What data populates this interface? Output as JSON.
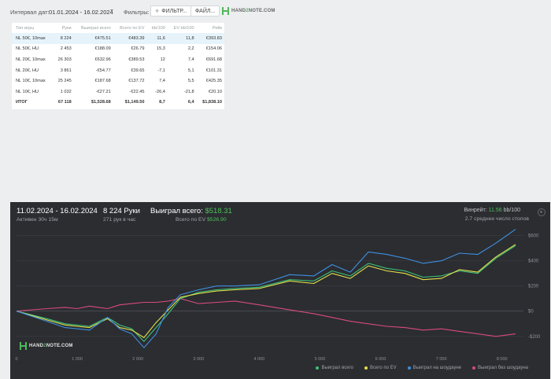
{
  "filters": {
    "interval_label": "Интервал дат:",
    "date_range": "01.01.2024 - 16.02.2024",
    "filters_label": "Фильтры:",
    "filter_button": "ФИЛЬТР...",
    "file_button": "ФАЙЛ...",
    "logo_left": "HAND",
    "logo_mid": "2",
    "logo_right": "NOTE.COM"
  },
  "table": {
    "headers": [
      "Тип игры",
      "Руки",
      "Выиграл всего",
      "Всего по EV",
      "bb/100",
      "EV bb/100",
      "Рейк"
    ],
    "rows": [
      {
        "type": "NL 50€, 10max",
        "hands": "8 224",
        "won": "€475.51",
        "ev": "€483.39",
        "bb": "11,6",
        "evbb": "11,8",
        "rake": "€393.83",
        "won_neg": false,
        "ev_neg": false,
        "bb_neg": false,
        "evbb_neg": false
      },
      {
        "type": "NL 50€, HU",
        "hands": "2 453",
        "won": "€188.09",
        "ev": "€26.79",
        "bb": "15,3",
        "evbb": "2,2",
        "rake": "€154.06",
        "won_neg": false,
        "ev_neg": false,
        "bb_neg": false,
        "evbb_neg": false
      },
      {
        "type": "NL 20€, 10max",
        "hands": "26 303",
        "won": "€632.96",
        "ev": "€389.53",
        "bb": "12",
        "evbb": "7,4",
        "rake": "€691.68",
        "won_neg": false,
        "ev_neg": false,
        "bb_neg": false,
        "evbb_neg": false
      },
      {
        "type": "NL 20€, HU",
        "hands": "3 861",
        "won": "-€54.77",
        "ev": "€39.65",
        "bb": "-7,1",
        "evbb": "5,1",
        "rake": "€101.31",
        "won_neg": true,
        "ev_neg": false,
        "bb_neg": true,
        "evbb_neg": false
      },
      {
        "type": "NL 10€, 10max",
        "hands": "25 245",
        "won": "€187.68",
        "ev": "€137.72",
        "bb": "7,4",
        "evbb": "5,5",
        "rake": "€425.35",
        "won_neg": false,
        "ev_neg": false,
        "bb_neg": false,
        "evbb_neg": false
      },
      {
        "type": "NL 10€, HU",
        "hands": "1 032",
        "won": "-€27.21",
        "ev": "-€22.45",
        "bb": "-26,4",
        "evbb": "-21,8",
        "rake": "€20.10",
        "won_neg": true,
        "ev_neg": true,
        "bb_neg": true,
        "evbb_neg": true
      }
    ],
    "total": {
      "type": "ИТОГ",
      "hands": "67 118",
      "won": "$1,528.68",
      "ev": "$1,149.50",
      "bb": "8,7",
      "evbb": "6,4",
      "rake": "$1,838.10"
    }
  },
  "summary": {
    "period": "11.02.2024 - 16.02.2024",
    "active": "Активен 30ч 15м",
    "hands": "8 224 Руки",
    "hands_per_hour": "271 рук в час",
    "won_label": "Выиграл всего:",
    "won_value": "$518.31",
    "ev_label": "Всего по EV",
    "ev_value": "$526.90",
    "winrate_label": "Винрейт:",
    "winrate_value": "11.56",
    "winrate_unit": "bb/100",
    "avg_tables": "2.7 среднее число столов"
  },
  "chart_data": {
    "type": "line",
    "x_ticks": [
      0,
      1000,
      2000,
      3000,
      4000,
      5000,
      6000,
      7000,
      8000
    ],
    "x_tick_labels": [
      "0",
      "1 000",
      "2 000",
      "3 000",
      "4 000",
      "5 000",
      "6 000",
      "7 000",
      "8 000"
    ],
    "y_ticks": [
      -200,
      0,
      200,
      400,
      600
    ],
    "y_tick_labels": [
      "-$200",
      "$0",
      "$200",
      "$400",
      "$600"
    ],
    "xlim": [
      0,
      8224
    ],
    "ylim": [
      -320,
      660
    ],
    "grid": true,
    "legend_position": "bottom-right",
    "colors": {
      "won": "#3ec27a",
      "ev": "#e6e04a",
      "showdown": "#3f8fe0",
      "nonshowdown": "#d84a7c"
    },
    "x": [
      0,
      500,
      800,
      1000,
      1200,
      1500,
      1700,
      1900,
      2100,
      2300,
      2500,
      2700,
      3000,
      3300,
      3600,
      4000,
      4500,
      4900,
      5200,
      5500,
      5800,
      6100,
      6400,
      6700,
      7000,
      7300,
      7600,
      7900,
      8224
    ],
    "series": [
      {
        "name": "Выиграл всего",
        "color": "#3ec27a",
        "values": [
          0,
          -60,
          -100,
          -110,
          -120,
          -50,
          -110,
          -140,
          -240,
          -130,
          -20,
          100,
          150,
          170,
          180,
          190,
          250,
          240,
          320,
          280,
          380,
          340,
          320,
          270,
          280,
          320,
          300,
          420,
          520
        ]
      },
      {
        "name": "Всего по EV",
        "color": "#e6e04a",
        "values": [
          0,
          -70,
          -110,
          -120,
          -130,
          -60,
          -130,
          -150,
          -210,
          -90,
          10,
          110,
          140,
          160,
          170,
          180,
          240,
          220,
          300,
          260,
          360,
          320,
          300,
          250,
          260,
          330,
          310,
          430,
          530
        ]
      },
      {
        "name": "Выиграл на шоудауне",
        "color": "#3f8fe0",
        "values": [
          0,
          -80,
          -130,
          -140,
          -150,
          -50,
          -140,
          -180,
          -290,
          -180,
          30,
          130,
          170,
          200,
          200,
          210,
          290,
          280,
          370,
          310,
          470,
          450,
          420,
          380,
          400,
          460,
          450,
          540,
          650
        ]
      },
      {
        "name": "Выиграл без шоудауна",
        "color": "#d84a7c",
        "values": [
          0,
          20,
          30,
          20,
          40,
          20,
          50,
          60,
          70,
          70,
          80,
          100,
          60,
          70,
          80,
          50,
          10,
          -20,
          -50,
          -80,
          -100,
          -120,
          -130,
          -150,
          -140,
          -160,
          -180,
          -200,
          -180
        ]
      }
    ]
  },
  "watermark": {
    "left": "HAND",
    "mid": "2",
    "right": "NOTE.COM"
  }
}
